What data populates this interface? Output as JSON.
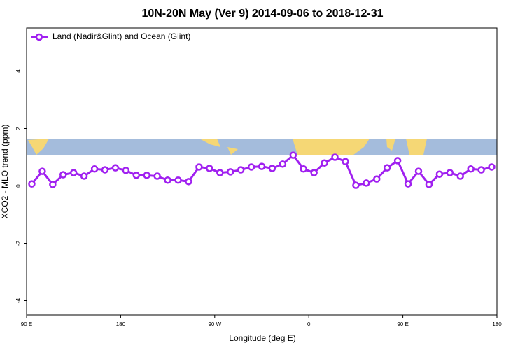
{
  "chart_data": {
    "type": "line",
    "title": "10N-20N May (Ver 9)   2014-09-06 to 2018-12-31",
    "x_label": "Longitude (deg E)",
    "y_label": "XCO2 - MLO trend (ppm)",
    "x": [
      95,
      105,
      115,
      125,
      135,
      145,
      155,
      165,
      175,
      185,
      195,
      205,
      215,
      225,
      235,
      245,
      255,
      265,
      275,
      285,
      295,
      305,
      315,
      325,
      335,
      345,
      355,
      365,
      375,
      385,
      395,
      405,
      415,
      425,
      435,
      445,
      455,
      465,
      475,
      485,
      495,
      505,
      515,
      525,
      535
    ],
    "series": [
      {
        "name": "Land (Nadir&Glint) and Ocean (Glint)",
        "color": "#a020f0",
        "values": [
          0.07,
          0.51,
          0.05,
          0.39,
          0.46,
          0.34,
          0.59,
          0.56,
          0.63,
          0.54,
          0.37,
          0.37,
          0.34,
          0.2,
          0.2,
          0.15,
          0.66,
          0.61,
          0.46,
          0.49,
          0.56,
          0.66,
          0.68,
          0.61,
          0.76,
          1.07,
          0.59,
          0.46,
          0.8,
          1.0,
          0.85,
          0.02,
          0.1,
          0.24,
          0.63,
          0.88,
          0.07,
          0.51,
          0.05,
          0.41,
          0.46,
          0.34,
          0.59,
          0.56,
          0.66
        ]
      }
    ],
    "xlim": [
      90,
      540
    ],
    "xticks": [
      {
        "value": 90,
        "label": "90 E"
      },
      {
        "value": 180,
        "label": "180"
      },
      {
        "value": 270,
        "label": "90 W"
      },
      {
        "value": 360,
        "label": "0"
      },
      {
        "value": 450,
        "label": "90 E"
      },
      {
        "value": 540,
        "label": "180"
      }
    ],
    "ylim": [
      -4.5,
      5.5
    ],
    "yticks": [
      -4,
      -2,
      0,
      2,
      4
    ],
    "legend": "top-left"
  }
}
